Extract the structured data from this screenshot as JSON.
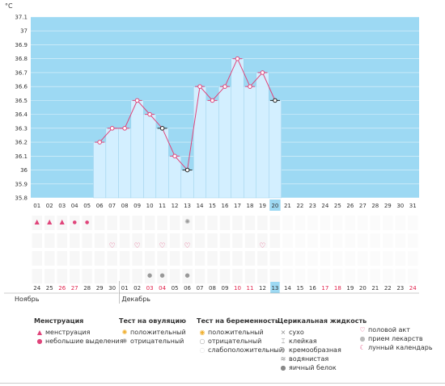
{
  "unit_label": "°C",
  "y_ticks": [
    "37.1",
    "37",
    "36.9",
    "36.8",
    "36.7",
    "36.6",
    "36.5",
    "36.4",
    "36.3",
    "36.2",
    "36.1",
    "36",
    "35.9",
    "35.8"
  ],
  "days": [
    "01",
    "02",
    "03",
    "04",
    "05",
    "06",
    "07",
    "08",
    "09",
    "10",
    "11",
    "12",
    "13",
    "14",
    "15",
    "16",
    "17",
    "18",
    "19",
    "20",
    "21",
    "22",
    "23",
    "24",
    "25",
    "26",
    "27",
    "28",
    "29",
    "30",
    "31"
  ],
  "highlight_day": "20",
  "dates": [
    "24",
    "25",
    "26",
    "27",
    "28",
    "29",
    "30",
    "01",
    "02",
    "03",
    "04",
    "05",
    "06",
    "07",
    "08",
    "09",
    "10",
    "11",
    "12",
    "13",
    "14",
    "15",
    "16",
    "17",
    "18",
    "19",
    "20",
    "21",
    "22",
    "23",
    "24"
  ],
  "red_dates_idx": [
    2,
    3,
    9,
    10,
    16,
    17,
    23,
    24,
    30
  ],
  "highlight_date": "13",
  "month_left": "Ноябрь",
  "month_right": "Декабрь",
  "chart_data": {
    "type": "line",
    "ylabel": "°C",
    "ylim": [
      35.8,
      37.1
    ],
    "x": [
      "06",
      "07",
      "08",
      "09",
      "10",
      "11",
      "12",
      "13",
      "14",
      "15",
      "16",
      "17",
      "18",
      "19",
      "20"
    ],
    "values": [
      36.2,
      36.3,
      36.3,
      36.5,
      36.4,
      36.3,
      36.1,
      36.0,
      36.6,
      36.5,
      36.6,
      36.8,
      36.6,
      36.7,
      36.5
    ],
    "filled_markers": [
      "11",
      "13",
      "20"
    ],
    "colors": {
      "line": "#e0447a",
      "plot_bg": "#9dd9f3",
      "bar": "#d3efff",
      "highlight": "#9dd9f3"
    }
  },
  "events": {
    "menstruation": [
      "01",
      "02",
      "03"
    ],
    "spotting": [
      "04",
      "05"
    ],
    "ovulation_negative": [
      "13"
    ],
    "intercourse": [
      "07",
      "09",
      "11",
      "13",
      "19"
    ],
    "egg_white": [
      "10",
      "11",
      "13"
    ]
  },
  "legend": {
    "col1": {
      "title": "Менструация",
      "items": [
        "менструация",
        "небольшие выделения"
      ]
    },
    "col2": {
      "title": "Тест на овуляцию",
      "items": [
        "положительный",
        "отрицательный"
      ]
    },
    "col3": {
      "title": "Тест на беременность",
      "items": [
        "положительный",
        "отрицательный",
        "слабоположительный"
      ]
    },
    "col4": {
      "title": "Церикальная жидкость",
      "items": [
        "сухо",
        "клейкая",
        "кремообразная",
        "водянистая",
        "яичный белок"
      ]
    },
    "col5": {
      "items": [
        "половой акт",
        "прием лекарств",
        "лунный календарь"
      ]
    }
  }
}
